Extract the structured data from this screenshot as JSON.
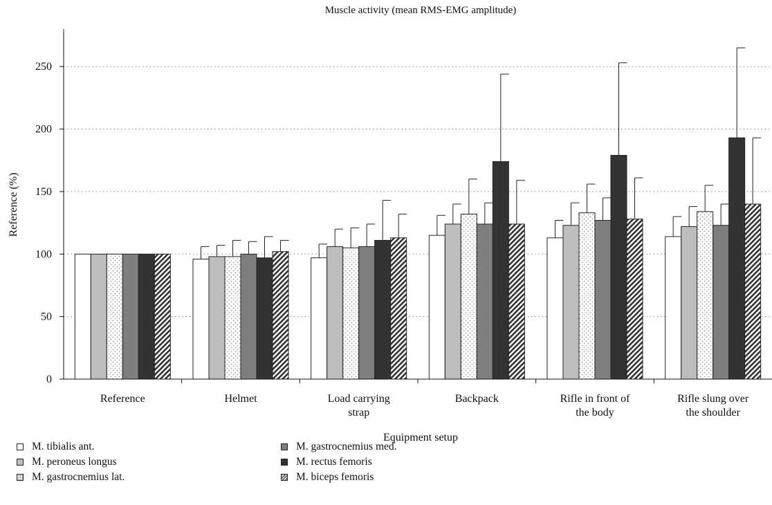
{
  "chart_data": {
    "type": "bar",
    "title": "Muscle activity (mean RMS-EMG amplitude)",
    "xlabel": "Equipment setup",
    "ylabel": "Reference (%)",
    "ylim": [
      0,
      280
    ],
    "yticks": [
      0,
      50,
      100,
      150,
      200,
      250
    ],
    "grid": "horizontal dotted",
    "legend_position": "bottom-left",
    "categories": [
      [
        "Reference"
      ],
      [
        "Helmet"
      ],
      [
        "Load carrying",
        "strap"
      ],
      [
        "Backpack"
      ],
      [
        "Rifle in front of",
        "the body"
      ],
      [
        "Rifle slung over",
        "the shoulder"
      ]
    ],
    "series": [
      {
        "name": "M. tibialis ant.",
        "pattern": "white",
        "values": [
          100,
          96,
          97,
          115,
          113,
          114
        ],
        "errors": [
          0,
          10,
          11,
          16,
          14,
          16
        ]
      },
      {
        "name": "M. peroneus longus",
        "pattern": "light-gray",
        "values": [
          100,
          98,
          106,
          124,
          123,
          122
        ],
        "errors": [
          0,
          9,
          14,
          16,
          18,
          16
        ]
      },
      {
        "name": "M. gastrocnemius lat.",
        "pattern": "dotted",
        "values": [
          100,
          98,
          105,
          132,
          133,
          134
        ],
        "errors": [
          0,
          13,
          16,
          28,
          23,
          21
        ]
      },
      {
        "name": "M. gastrocnemius med.",
        "pattern": "gray",
        "values": [
          100,
          100,
          106,
          124,
          127,
          123
        ],
        "errors": [
          0,
          10,
          18,
          17,
          18,
          17
        ]
      },
      {
        "name": "M. rectus femoris",
        "pattern": "dark",
        "values": [
          100,
          97,
          111,
          174,
          179,
          193
        ],
        "errors": [
          0,
          17,
          32,
          70,
          74,
          72
        ]
      },
      {
        "name": "M. biceps femoris",
        "pattern": "hatched",
        "values": [
          100,
          102,
          113,
          124,
          128,
          140
        ],
        "errors": [
          0,
          9,
          19,
          35,
          33,
          53
        ]
      }
    ],
    "colors": {
      "white": "#ffffff",
      "light_gray": "#bdbdbd",
      "gray": "#7f7f7f",
      "dark": "#333333",
      "axis": "#111111",
      "grid": "#666666"
    }
  }
}
